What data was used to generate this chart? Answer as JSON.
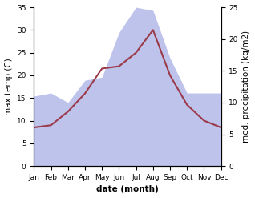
{
  "months": [
    "Jan",
    "Feb",
    "Mar",
    "Apr",
    "May",
    "Jun",
    "Jul",
    "Aug",
    "Sep",
    "Oct",
    "Nov",
    "Dec"
  ],
  "max_temp": [
    8.5,
    9.0,
    12.0,
    16.0,
    21.5,
    22.0,
    25.0,
    30.0,
    20.0,
    13.5,
    10.0,
    8.5
  ],
  "precipitation": [
    11.0,
    11.5,
    10.0,
    13.5,
    14.0,
    21.0,
    25.0,
    24.5,
    17.0,
    11.5,
    11.5,
    11.5
  ],
  "temp_color": "#9b3a4a",
  "precip_fill_color": "#b3b9e8",
  "precip_fill_alpha": 0.85,
  "ylabel_left": "max temp (C)",
  "ylabel_right": "med. precipitation (kg/m2)",
  "xlabel": "date (month)",
  "ylim_left": [
    0,
    35
  ],
  "ylim_right": [
    0,
    25
  ],
  "yticks_left": [
    0,
    5,
    10,
    15,
    20,
    25,
    30,
    35
  ],
  "yticks_right": [
    0,
    5,
    10,
    15,
    20,
    25
  ],
  "label_fontsize": 7.5,
  "tick_fontsize": 6.5
}
